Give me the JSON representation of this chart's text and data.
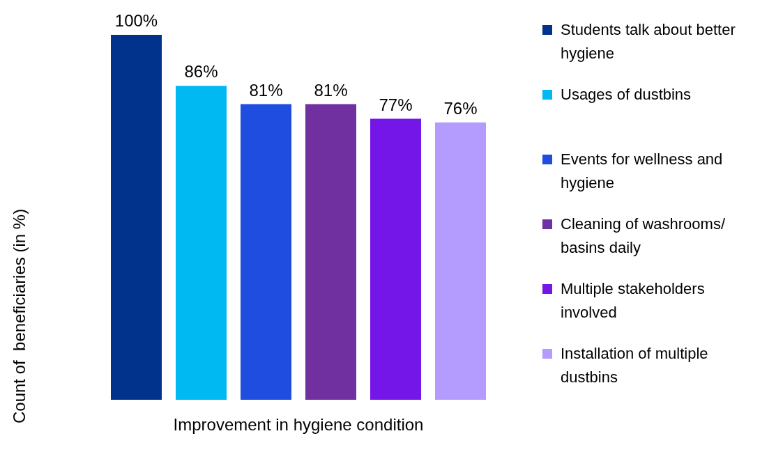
{
  "chart_data": {
    "type": "bar",
    "xlabel": "Improvement in hygiene condition",
    "ylabel": "Count of  beneficiaries (in %)",
    "categories": [
      null
    ],
    "legend": "right",
    "series": [
      {
        "name": "Students talk about better hygiene",
        "color": "#02338c",
        "values": [
          100
        ],
        "value_labels": [
          "100%"
        ]
      },
      {
        "name": "Usages of dustbins",
        "color": "#00b8f2",
        "values": [
          86
        ],
        "value_labels": [
          "86%"
        ]
      },
      {
        "name": "Events for wellness and hygiene",
        "color": "#1f4de0",
        "values": [
          81
        ],
        "value_labels": [
          "81%"
        ]
      },
      {
        "name": "Cleaning of washrooms/ basins daily",
        "color": "#7030a0",
        "values": [
          81
        ],
        "value_labels": [
          "81%"
        ]
      },
      {
        "name": "Multiple stakeholders involved",
        "color": "#7416e8",
        "values": [
          77
        ],
        "value_labels": [
          "77%"
        ]
      },
      {
        "name": "Installation of multiple dustbins",
        "color": "#b49cff",
        "values": [
          76
        ],
        "value_labels": [
          "76%"
        ]
      }
    ]
  }
}
